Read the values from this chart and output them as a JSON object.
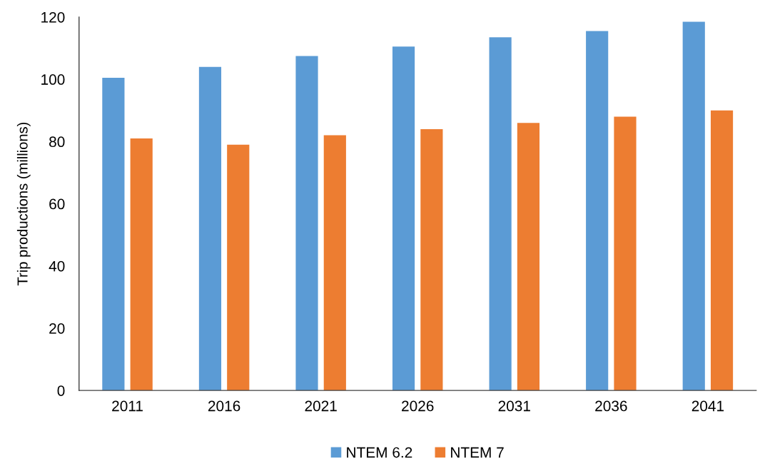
{
  "chart_data": {
    "type": "bar",
    "ylabel": "Trip productions (millions)",
    "categories": [
      "2011",
      "2016",
      "2021",
      "2026",
      "2031",
      "2036",
      "2041"
    ],
    "series": [
      {
        "name": "NTEM 6.2",
        "color": "#5b9bd5",
        "values": [
          100.5,
          104,
          107.5,
          110.5,
          113.5,
          115.5,
          118.5
        ]
      },
      {
        "name": "NTEM 7",
        "color": "#ed7d31",
        "values": [
          81,
          79,
          82,
          84,
          86,
          88,
          90
        ]
      }
    ],
    "ylim": [
      0,
      120
    ],
    "yticks": [
      0,
      20,
      40,
      60,
      80,
      100,
      120
    ],
    "grid": false,
    "legend": "bottom"
  }
}
